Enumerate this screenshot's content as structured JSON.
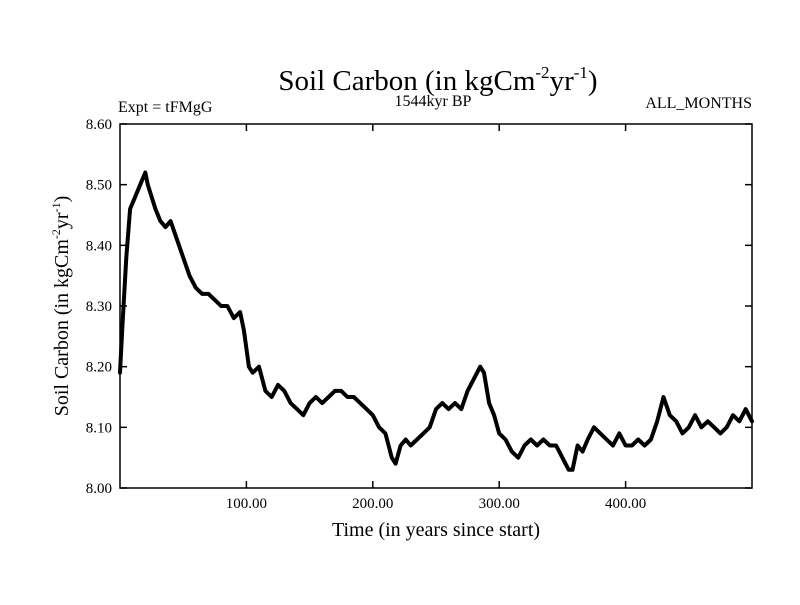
{
  "chart_data": {
    "type": "line",
    "title_main": "Soil Carbon (in kgCm",
    "title_sup1": "-2",
    "title_mid": "yr",
    "title_sup2": "-1",
    "title_end": ")",
    "subtitle_left": "Expt = tFMgG",
    "subtitle_center": "1544kyr BP",
    "subtitle_right": "ALL_MONTHS",
    "xlabel": "Time (in years since start)",
    "ylabel_main": "Soil Carbon (in kgCm",
    "ylabel_sup1": "-2",
    "ylabel_mid": "yr",
    "ylabel_sup2": "-1",
    "ylabel_end": ")",
    "xlim": [
      0,
      500
    ],
    "ylim": [
      8.0,
      8.6
    ],
    "x_ticks": [
      {
        "value": 100,
        "label": "100.00"
      },
      {
        "value": 200,
        "label": "200.00"
      },
      {
        "value": 300,
        "label": "300.00"
      },
      {
        "value": 400,
        "label": "400.00"
      }
    ],
    "y_ticks": [
      {
        "value": 8.0,
        "label": "8.00"
      },
      {
        "value": 8.1,
        "label": "8.10"
      },
      {
        "value": 8.2,
        "label": "8.20"
      },
      {
        "value": 8.3,
        "label": "8.30"
      },
      {
        "value": 8.4,
        "label": "8.40"
      },
      {
        "value": 8.5,
        "label": "8.50"
      },
      {
        "value": 8.6,
        "label": "8.60"
      }
    ],
    "series": [
      {
        "color": "#000000",
        "x": [
          0,
          2,
          5,
          8,
          12,
          16,
          20,
          22,
          25,
          28,
          32,
          36,
          40,
          45,
          50,
          55,
          60,
          65,
          70,
          75,
          80,
          85,
          90,
          95,
          98,
          100,
          102,
          105,
          110,
          115,
          120,
          125,
          130,
          135,
          140,
          145,
          150,
          155,
          160,
          165,
          170,
          175,
          180,
          185,
          190,
          195,
          200,
          205,
          210,
          215,
          218,
          222,
          226,
          230,
          235,
          240,
          245,
          250,
          255,
          260,
          265,
          270,
          275,
          280,
          285,
          288,
          292,
          296,
          300,
          305,
          310,
          315,
          320,
          325,
          330,
          335,
          340,
          345,
          350,
          355,
          358,
          362,
          366,
          370,
          375,
          380,
          385,
          390,
          395,
          400,
          405,
          410,
          415,
          420,
          425,
          430,
          435,
          440,
          445,
          450,
          455,
          460,
          465,
          470,
          475,
          480,
          485,
          490,
          495,
          500
        ],
        "y": [
          8.19,
          8.27,
          8.38,
          8.46,
          8.48,
          8.5,
          8.52,
          8.5,
          8.48,
          8.46,
          8.44,
          8.43,
          8.44,
          8.41,
          8.38,
          8.35,
          8.33,
          8.32,
          8.32,
          8.31,
          8.3,
          8.3,
          8.28,
          8.29,
          8.26,
          8.23,
          8.2,
          8.19,
          8.2,
          8.16,
          8.15,
          8.17,
          8.16,
          8.14,
          8.13,
          8.12,
          8.14,
          8.15,
          8.14,
          8.15,
          8.16,
          8.16,
          8.15,
          8.15,
          8.14,
          8.13,
          8.12,
          8.1,
          8.09,
          8.05,
          8.04,
          8.07,
          8.08,
          8.07,
          8.08,
          8.09,
          8.1,
          8.13,
          8.14,
          8.13,
          8.14,
          8.13,
          8.16,
          8.18,
          8.2,
          8.19,
          8.14,
          8.12,
          8.09,
          8.08,
          8.06,
          8.05,
          8.07,
          8.08,
          8.07,
          8.08,
          8.07,
          8.07,
          8.05,
          8.03,
          8.03,
          8.07,
          8.06,
          8.08,
          8.1,
          8.09,
          8.08,
          8.07,
          8.09,
          8.07,
          8.07,
          8.08,
          8.07,
          8.08,
          8.11,
          8.15,
          8.12,
          8.11,
          8.09,
          8.1,
          8.12,
          8.1,
          8.11,
          8.1,
          8.09,
          8.1,
          8.12,
          8.11,
          8.13,
          8.11
        ]
      }
    ]
  }
}
